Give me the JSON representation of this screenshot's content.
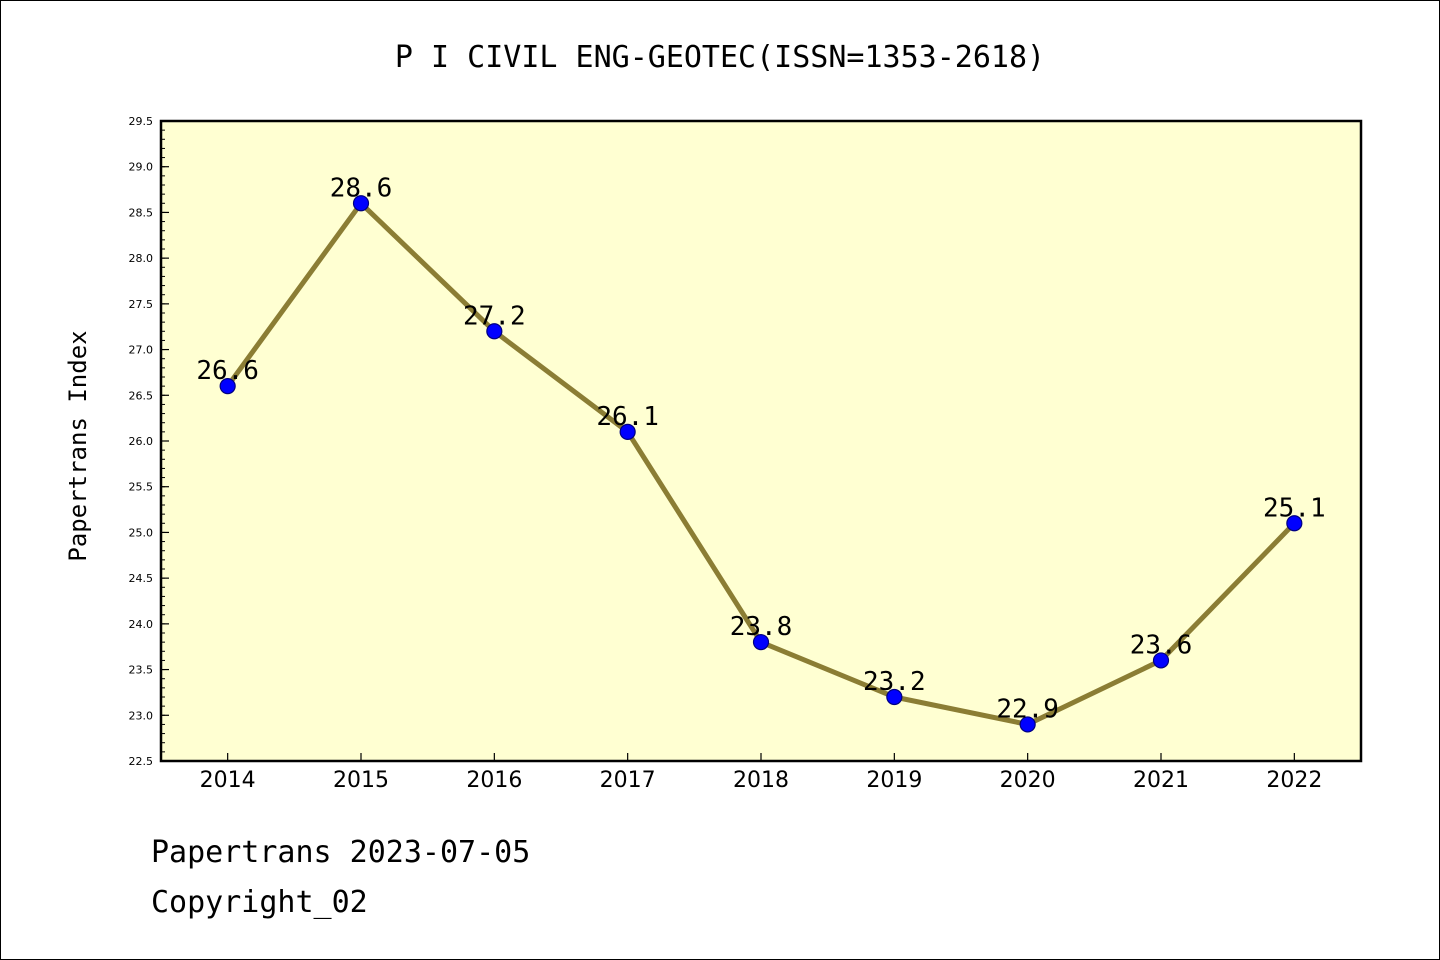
{
  "chart_data": {
    "type": "line",
    "title": "P I CIVIL ENG-GEOTEC(ISSN=1353-2618)",
    "xlabel": "",
    "ylabel": "Papertrans Index",
    "categories": [
      "2014",
      "2015",
      "2016",
      "2017",
      "2018",
      "2019",
      "2020",
      "2021",
      "2022"
    ],
    "values": [
      26.6,
      28.6,
      27.2,
      26.1,
      23.8,
      23.2,
      22.9,
      23.6,
      25.1
    ],
    "data_labels": [
      "26.6",
      "28.6",
      "27.2",
      "26.1",
      "23.8",
      "23.2",
      "22.9",
      "23.6",
      "25.1"
    ],
    "ylim": [
      22.5,
      29.5
    ],
    "yticks": [
      "22.5",
      "23.0",
      "23.5",
      "24.0",
      "24.5",
      "25.0",
      "25.5",
      "26.0",
      "26.5",
      "27.0",
      "27.5",
      "28.0",
      "28.5",
      "29.0",
      "29.5"
    ],
    "grid": false,
    "legend": "none",
    "colors": {
      "plot_background": "#ffffd2",
      "line": "#8b7d34",
      "marker_fill": "#0000ff",
      "marker_edge": "#000080"
    }
  },
  "footer": {
    "date_line": "Papertrans 2023-07-05",
    "copyright": "Copyright_02"
  }
}
